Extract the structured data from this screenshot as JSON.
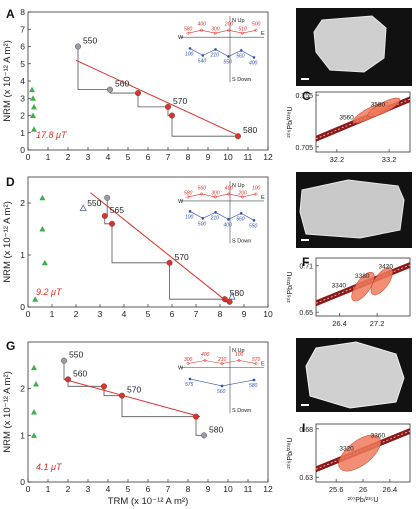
{
  "panel_letters": [
    "A",
    "B",
    "C",
    "D",
    "E",
    "F",
    "G",
    "H",
    "I"
  ],
  "chart_data": [
    {
      "id": "A",
      "type": "scatter",
      "ylabel": "NRM (x 10⁻¹² A m²)",
      "xlim": [
        0,
        12
      ],
      "ylim": [
        0,
        8
      ],
      "xticks": [
        0,
        1,
        2,
        3,
        4,
        5,
        6,
        7,
        8,
        9,
        10,
        11,
        12
      ],
      "yticks": [
        0,
        1,
        2,
        3,
        4,
        5,
        6,
        7,
        8
      ],
      "annotation": "17.8 μT",
      "fit_line": {
        "x": [
          2.4,
          10.6
        ],
        "y": [
          5.2,
          0.8
        ]
      },
      "points": [
        {
          "x": 2.5,
          "y": 6.0,
          "label": "550",
          "color": "gray"
        },
        {
          "x": 4.1,
          "y": 3.5,
          "label": "560",
          "color": "gray"
        },
        {
          "x": 5.5,
          "y": 3.3,
          "label": "",
          "color": "red"
        },
        {
          "x": 7.0,
          "y": 2.5,
          "label": "570",
          "color": "red"
        },
        {
          "x": 7.2,
          "y": 2.0,
          "label": "",
          "color": "red"
        },
        {
          "x": 10.5,
          "y": 0.8,
          "label": "580",
          "color": "red"
        }
      ],
      "triangles": [
        {
          "x": 0.2,
          "y": 3.5
        },
        {
          "x": 0.25,
          "y": 3.0
        },
        {
          "x": 0.3,
          "y": 2.5
        },
        {
          "x": 0.25,
          "y": 2.0
        },
        {
          "x": 0.3,
          "y": 1.2
        }
      ],
      "inset": {
        "up": "N Up",
        "down": "S Down",
        "east": "E",
        "west": "W",
        "red_labels": [
          "580",
          "400",
          "300",
          "200",
          "510",
          "500"
        ],
        "blue_labels": [
          "100",
          "540",
          "210",
          "550",
          "560",
          "400"
        ]
      }
    },
    {
      "id": "D",
      "type": "scatter",
      "ylabel": "NRM (x 10⁻¹² A m²)",
      "xlim": [
        0,
        10
      ],
      "ylim": [
        0,
        2.5
      ],
      "xticks": [
        0,
        1,
        2,
        3,
        4,
        5,
        6,
        7,
        8,
        9,
        10
      ],
      "yticks": [
        0,
        1,
        2
      ],
      "annotation": "9.2 μT",
      "fit_line": {
        "x": [
          2.6,
          8.3
        ],
        "y": [
          2.2,
          0.1
        ]
      },
      "points": [
        {
          "x": 3.3,
          "y": 2.1,
          "label": "",
          "color": "gray"
        },
        {
          "x": 3.2,
          "y": 1.75,
          "label": "565",
          "color": "red"
        },
        {
          "x": 3.5,
          "y": 1.6,
          "label": "",
          "color": "red"
        },
        {
          "x": 5.9,
          "y": 0.85,
          "label": "570",
          "color": "red"
        },
        {
          "x": 8.2,
          "y": 0.15,
          "label": "580",
          "color": "red"
        },
        {
          "x": 8.4,
          "y": 0.1,
          "label": "",
          "color": "red"
        }
      ],
      "open_triangles": [
        {
          "x": 2.3,
          "y": 1.9,
          "label": "550"
        },
        {
          "x": 8.5,
          "y": 0.2,
          "label": ""
        }
      ],
      "triangles": [
        {
          "x": 0.6,
          "y": 2.1
        },
        {
          "x": 0.6,
          "y": 1.5
        },
        {
          "x": 0.7,
          "y": 0.85
        },
        {
          "x": 0.3,
          "y": 0.15
        }
      ],
      "inset": {
        "up": "N Up",
        "down": "S Down",
        "east": "E",
        "west": "W",
        "red_labels": [
          "580",
          "560",
          "300",
          "400",
          "200",
          "100"
        ],
        "blue_labels": [
          "100",
          "500",
          "210",
          "400",
          "560",
          "550"
        ]
      }
    },
    {
      "id": "G",
      "type": "scatter",
      "xlabel": "TRM (x 10⁻¹² A m²)",
      "ylabel": "NRM (x 10⁻¹² A m²)",
      "xlim": [
        0,
        12
      ],
      "ylim": [
        0,
        3
      ],
      "xticks": [
        0,
        1,
        2,
        3,
        4,
        5,
        6,
        7,
        8,
        9,
        10,
        11,
        12
      ],
      "yticks": [
        0,
        1,
        2
      ],
      "annotation": "4.1 μT",
      "fit_line": {
        "x": [
          1.8,
          8.6
        ],
        "y": [
          2.2,
          1.4
        ]
      },
      "points": [
        {
          "x": 1.8,
          "y": 2.6,
          "label": "550",
          "color": "gray"
        },
        {
          "x": 2.0,
          "y": 2.2,
          "label": "560",
          "color": "red"
        },
        {
          "x": 3.8,
          "y": 2.05,
          "label": "",
          "color": "red"
        },
        {
          "x": 4.7,
          "y": 1.85,
          "label": "570",
          "color": "red"
        },
        {
          "x": 8.4,
          "y": 1.4,
          "label": "",
          "color": "red"
        },
        {
          "x": 8.8,
          "y": 1.0,
          "label": "580",
          "color": "gray"
        }
      ],
      "triangles": [
        {
          "x": 0.3,
          "y": 2.45
        },
        {
          "x": 0.4,
          "y": 2.1
        },
        {
          "x": 0.3,
          "y": 1.5
        },
        {
          "x": 0.3,
          "y": 1.0
        }
      ],
      "inset": {
        "up": "N Up",
        "down": "S Down",
        "east": "E",
        "west": "W",
        "red_labels": [
          "300",
          "400",
          "210",
          "100",
          "570"
        ],
        "blue_labels": [
          "575",
          "560",
          "580"
        ]
      }
    },
    {
      "id": "C",
      "type": "scatter",
      "ylabel": "²⁰⁶Pb/²³⁸U",
      "xlim": [
        31.8,
        33.6
      ],
      "ylim": [
        0.7,
        0.758
      ],
      "xticks": [
        32.2,
        33.2
      ],
      "yticks": [
        0.705,
        0.755
      ],
      "concordia_labels": [
        "3560",
        "3580"
      ],
      "ellipses": [
        {
          "cx": 32.85,
          "cy": 0.738,
          "rx": 40,
          "ry": 5,
          "rot": -28
        },
        {
          "cx": 33.1,
          "cy": 0.743,
          "rx": 36,
          "ry": 5,
          "rot": -28
        }
      ]
    },
    {
      "id": "F",
      "type": "scatter",
      "ylabel": "²⁰⁶Pb/²³⁸U",
      "xlim": [
        25.9,
        27.9
      ],
      "ylim": [
        0.645,
        0.72
      ],
      "xticks": [
        26.4,
        27.2
      ],
      "yticks": [
        0.65,
        0.71
      ],
      "concordia_labels": [
        "3340",
        "3380",
        "3420"
      ],
      "ellipses": [
        {
          "cx": 26.9,
          "cy": 0.683,
          "rx": 34,
          "ry": 7,
          "rot": -55
        },
        {
          "cx": 27.3,
          "cy": 0.69,
          "rx": 32,
          "ry": 7,
          "rot": -55
        }
      ]
    },
    {
      "id": "I",
      "type": "scatter",
      "xlabel": "²⁰⁷Pb/²³⁵U",
      "ylabel": "²⁰⁶Pb/²³⁸U",
      "xlim": [
        25.3,
        26.7
      ],
      "ylim": [
        0.625,
        0.685
      ],
      "xticks": [
        25.6,
        26.0,
        26.4
      ],
      "yticks": [
        0.63,
        0.68
      ],
      "concordia_labels": [
        "3320",
        "3360"
      ],
      "ellipses": [
        {
          "cx": 25.95,
          "cy": 0.655,
          "rx": 50,
          "ry": 12,
          "rot": -38
        }
      ]
    }
  ]
}
